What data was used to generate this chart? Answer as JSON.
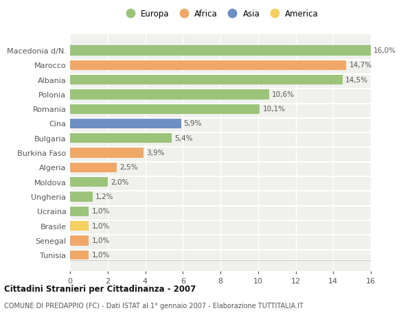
{
  "countries": [
    "Macedonia d/N.",
    "Marocco",
    "Albania",
    "Polonia",
    "Romania",
    "Cina",
    "Bulgaria",
    "Burkina Faso",
    "Algeria",
    "Moldova",
    "Ungheria",
    "Ucraina",
    "Brasile",
    "Senegal",
    "Tunisia"
  ],
  "values": [
    16.0,
    14.7,
    14.5,
    10.6,
    10.1,
    5.9,
    5.4,
    3.9,
    2.5,
    2.0,
    1.2,
    1.0,
    1.0,
    1.0,
    1.0
  ],
  "labels": [
    "16,0%",
    "14,7%",
    "14,5%",
    "10,6%",
    "10,1%",
    "5,9%",
    "5,4%",
    "3,9%",
    "2,5%",
    "2,0%",
    "1,2%",
    "1,0%",
    "1,0%",
    "1,0%",
    "1,0%"
  ],
  "continents": [
    "Europa",
    "Africa",
    "Europa",
    "Europa",
    "Europa",
    "Asia",
    "Europa",
    "Africa",
    "Africa",
    "Europa",
    "Europa",
    "Europa",
    "America",
    "Africa",
    "Africa"
  ],
  "colors": {
    "Europa": "#9bc47a",
    "Africa": "#f0a868",
    "Asia": "#6e8fc4",
    "America": "#f5d060"
  },
  "legend_order": [
    "Europa",
    "Africa",
    "Asia",
    "America"
  ],
  "title1": "Cittadini Stranieri per Cittadinanza - 2007",
  "title2": "COMUNE DI PREDAPPIO (FC) - Dati ISTAT al 1° gennaio 2007 - Elaborazione TUTTITALIA.IT",
  "xlim": [
    0,
    16
  ],
  "xticks": [
    0,
    2,
    4,
    6,
    8,
    10,
    12,
    14,
    16
  ],
  "background_color": "#ffffff",
  "bar_area_color": "#f0f0ec",
  "row_sep_color": "#ffffff",
  "label_color": "#555555",
  "ytick_color": "#555555"
}
